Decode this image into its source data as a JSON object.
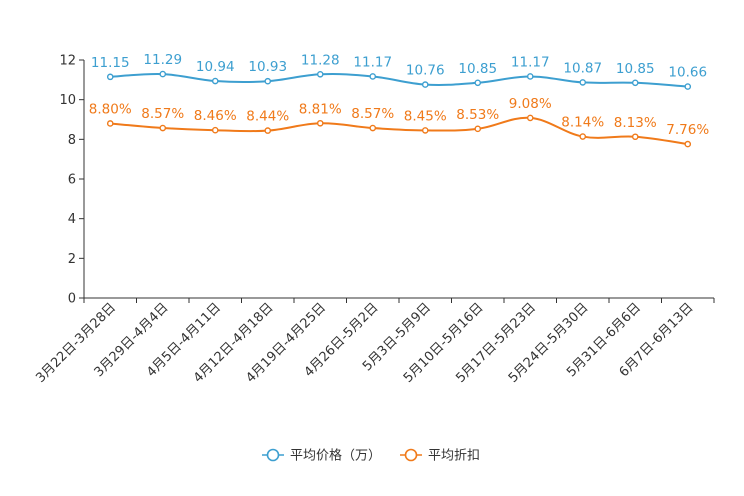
{
  "chart_data": {
    "type": "line",
    "title": "",
    "xlabel": "",
    "ylabel": "",
    "ylim": [
      0,
      12
    ],
    "yticks": [
      0,
      2,
      4,
      6,
      8,
      10,
      12
    ],
    "grid": false,
    "legend_position": "bottom",
    "categories": [
      "3月22日-3月28日",
      "3月29日-4月4日",
      "4月5日-4月11日",
      "4月12日-4月18日",
      "4月19日-4月25日",
      "4月26日-5月2日",
      "5月3日-5月9日",
      "5月10日-5月16日",
      "5月17日-5月23日",
      "5月24日-5月30日",
      "5月31日-6月6日",
      "6月7日-6月13日"
    ],
    "series": [
      {
        "name": "平均价格（万）",
        "color": "#3d9fd0",
        "values": [
          11.15,
          11.29,
          10.94,
          10.93,
          11.28,
          11.17,
          10.76,
          10.85,
          11.17,
          10.87,
          10.85,
          10.66
        ],
        "labels": [
          "11.15",
          "11.29",
          "10.94",
          "10.93",
          "11.28",
          "11.17",
          "10.76",
          "10.85",
          "11.17",
          "10.87",
          "10.85",
          "10.66"
        ]
      },
      {
        "name": "平均折扣",
        "color": "#f07a1a",
        "values": [
          8.8,
          8.57,
          8.46,
          8.44,
          8.81,
          8.57,
          8.45,
          8.53,
          9.08,
          8.14,
          8.13,
          7.76
        ],
        "labels": [
          "8.80%",
          "8.57%",
          "8.46%",
          "8.44%",
          "8.81%",
          "8.57%",
          "8.45%",
          "8.53%",
          "9.08%",
          "8.14%",
          "8.13%",
          "7.76%"
        ]
      }
    ]
  }
}
